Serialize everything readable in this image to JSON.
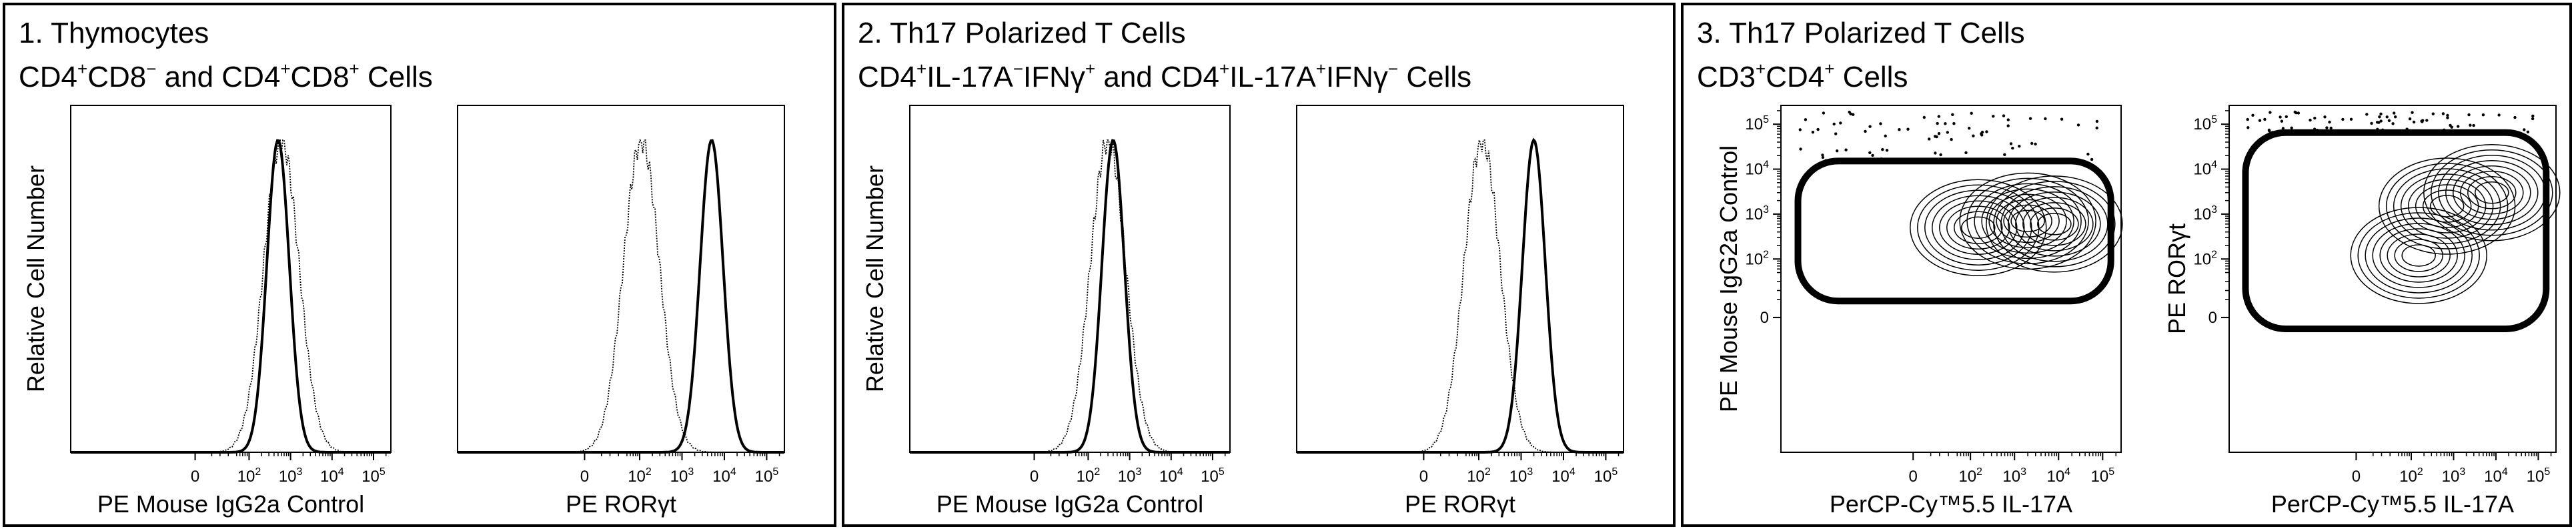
{
  "panels": [
    {
      "number": "1.",
      "heading": "Thymocytes",
      "subheading_parts": [
        {
          "t": "CD4",
          "sup": "+"
        },
        {
          "t": "CD8",
          "sup": "−"
        },
        {
          "t": " and CD4",
          "sup": "+"
        },
        {
          "t": "CD8",
          "sup": "+"
        },
        {
          "t": " Cells",
          "sup": ""
        }
      ]
    },
    {
      "number": "2.",
      "heading": "Th17 Polarized T Cells",
      "subheading_parts": [
        {
          "t": "CD4",
          "sup": "+"
        },
        {
          "t": "IL-17A",
          "sup": "−"
        },
        {
          "t": "IFNγ",
          "sup": "+"
        },
        {
          "t": " and CD4",
          "sup": "+"
        },
        {
          "t": "IL-17A",
          "sup": "+"
        },
        {
          "t": "IFNγ",
          "sup": "−"
        },
        {
          "t": " Cells",
          "sup": ""
        }
      ]
    },
    {
      "number": "3.",
      "heading": "Th17 Polarized T Cells",
      "subheading_parts": [
        {
          "t": "CD3",
          "sup": "+"
        },
        {
          "t": "CD4",
          "sup": "+"
        },
        {
          "t": " Cells",
          "sup": ""
        }
      ]
    }
  ],
  "chart_data": [
    {
      "type": "area",
      "subtype": "histogram",
      "panel": 1,
      "xlabel": "PE Mouse IgG2a Control",
      "ylabel": "Relative Cell Number",
      "x_scale": "biexponential",
      "x_tick_labels": [
        "0",
        "10^2",
        "10^3",
        "10^4",
        "10^5"
      ],
      "series": [
        {
          "style": "bold",
          "peak_x": 500
        },
        {
          "style": "dotted",
          "peak_x": 600
        }
      ]
    },
    {
      "type": "area",
      "subtype": "histogram",
      "panel": 1,
      "xlabel": "PE  RORγt",
      "ylabel": "",
      "x_scale": "biexponential",
      "x_tick_labels": [
        "0",
        "10^2",
        "10^3",
        "10^4",
        "10^5"
      ],
      "series": [
        {
          "style": "dotted",
          "peak_x": 110
        },
        {
          "style": "bold",
          "peak_x": 5000
        }
      ]
    },
    {
      "type": "area",
      "subtype": "histogram",
      "panel": 2,
      "xlabel": "PE Mouse IgG2a Control",
      "ylabel": "Relative Cell Number",
      "x_scale": "biexponential",
      "x_tick_labels": [
        "0",
        "10^2",
        "10^3",
        "10^4",
        "10^5"
      ],
      "series": [
        {
          "style": "bold",
          "peak_x": 400
        },
        {
          "style": "dotted",
          "peak_x": 300
        }
      ]
    },
    {
      "type": "area",
      "subtype": "histogram",
      "panel": 2,
      "xlabel": "PE  RORγt",
      "ylabel": "",
      "x_scale": "biexponential",
      "x_tick_labels": [
        "0",
        "10^2",
        "10^3",
        "10^4",
        "10^5"
      ],
      "series": [
        {
          "style": "dotted",
          "peak_x": 120
        },
        {
          "style": "bold",
          "peak_x": 2000
        }
      ]
    },
    {
      "type": "scatter",
      "subtype": "contour",
      "panel": 3,
      "xlabel": "PerCP-Cy™5.5  IL-17A",
      "ylabel": "PE Mouse IgG2a Control",
      "x_scale": "biexponential",
      "y_scale": "biexponential",
      "x_tick_labels": [
        "0",
        "10^2",
        "10^3",
        "10^4",
        "10^5"
      ],
      "y_tick_labels": [
        "0",
        "10^2",
        "10^3",
        "10^4",
        "10^5"
      ],
      "populations": [
        {
          "x": 150,
          "y": 500
        },
        {
          "x": 2000,
          "y": 700
        },
        {
          "x": 8000,
          "y": 600
        }
      ]
    },
    {
      "type": "scatter",
      "subtype": "contour",
      "panel": 3,
      "xlabel": "PerCP-Cy™5.5  IL-17A",
      "ylabel": "PE  RORγt",
      "x_scale": "biexponential",
      "y_scale": "biexponential",
      "x_tick_labels": [
        "0",
        "10^2",
        "10^3",
        "10^4",
        "10^5"
      ],
      "y_tick_labels": [
        "0",
        "10^2",
        "10^3",
        "10^4",
        "10^5"
      ],
      "populations": [
        {
          "x": 150,
          "y": 120
        },
        {
          "x": 700,
          "y": 1500
        },
        {
          "x": 8000,
          "y": 3000
        }
      ]
    }
  ]
}
